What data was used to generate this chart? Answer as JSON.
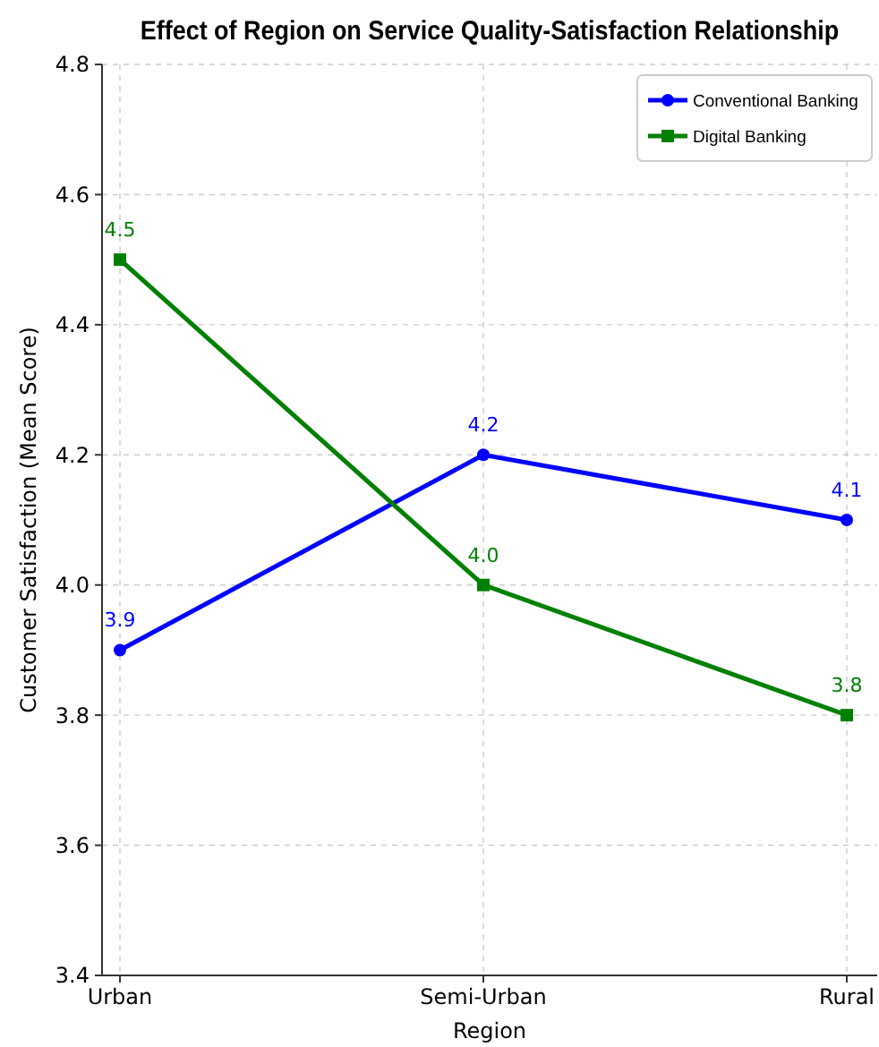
{
  "chart_data": {
    "type": "line",
    "title": "Effect of Region on Service Quality-Satisfaction Relationship",
    "xlabel": "Region",
    "ylabel": "Customer Satisfaction (Mean Score)",
    "categories": [
      "Urban",
      "Semi-Urban",
      "Rural"
    ],
    "series": [
      {
        "name": "Conventional Banking",
        "color": "#0000ff",
        "values": [
          3.9,
          4.2,
          4.1
        ],
        "marker": "circle",
        "value_labels": [
          "3.9",
          "4.2",
          "4.1"
        ]
      },
      {
        "name": "Digital Banking",
        "color": "#008000",
        "values": [
          4.5,
          4.0,
          3.8
        ],
        "marker": "square",
        "value_labels": [
          "4.5",
          "4.0",
          "3.8"
        ]
      }
    ],
    "ylim": [
      3.4,
      4.8
    ],
    "yticks": [
      3.4,
      3.6,
      3.8,
      {
        "value": 4,
        "label": "4.0"
      },
      4.2,
      4.4,
      4.6,
      4.8
    ],
    "grid": true,
    "legend": "top right",
    "line_style": "solid"
  }
}
